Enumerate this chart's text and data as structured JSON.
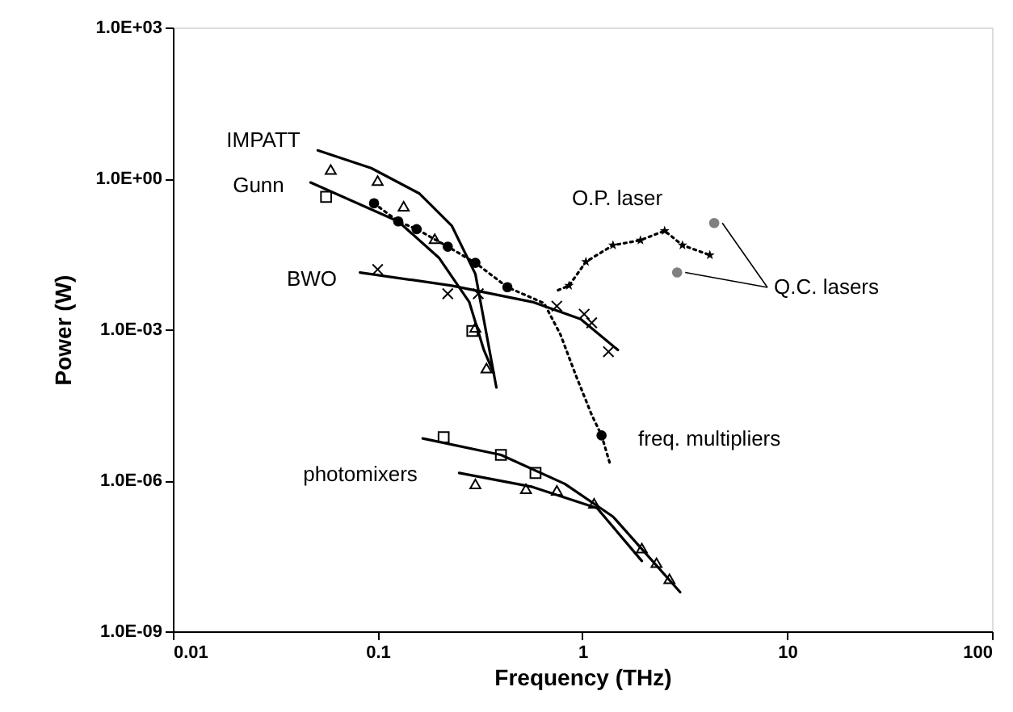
{
  "chart_data": {
    "type": "scatter",
    "xlabel": "Frequency (THz)",
    "ylabel": "Power (W)",
    "log": "xy",
    "grid": false,
    "xlim": [
      0.01,
      100
    ],
    "xticks": [
      0.01,
      0.1,
      1,
      10,
      100
    ],
    "ylim": [
      1e-09,
      1000
    ],
    "yticks": [
      {
        "value": 1000,
        "label": "1.0E+03"
      },
      {
        "value": 1,
        "label": "1.0E+00"
      },
      {
        "value": 0.001,
        "label": "1.0E-03"
      },
      {
        "value": 1e-06,
        "label": "1.0E-06"
      },
      {
        "value": 1e-09,
        "label": "1.0E-09"
      }
    ],
    "series": [
      {
        "type": "line",
        "color": "#000000",
        "line_style": "solid",
        "x": [
          0.051,
          0.093,
          0.16,
          0.23,
          0.3,
          0.38
        ],
        "values": [
          3.6,
          1.6,
          0.5,
          0.115,
          0.0126,
          7e-05
        ]
      },
      {
        "marker": "triangle",
        "color": "#000000",
        "x": [
          0.059,
          0.1,
          0.134,
          0.19,
          0.3,
          0.34
        ],
        "values": [
          1.5,
          0.9,
          0.28,
          0.063,
          0.0011,
          0.00017
        ]
      },
      {
        "type": "line",
        "color": "#000000",
        "line_style": "solid",
        "x": [
          0.047,
          0.126,
          0.2,
          0.28,
          0.33,
          0.37
        ],
        "values": [
          0.83,
          0.14,
          0.026,
          0.0035,
          0.00039,
          0.00013
        ]
      },
      {
        "marker": "square",
        "color": "#000000",
        "x": [
          0.056,
          0.29
        ],
        "values": [
          0.43,
          0.00093
        ]
      },
      {
        "type": "line",
        "color": "#000000",
        "line_style": "dotted",
        "x": [
          0.096,
          0.126,
          0.155,
          0.22,
          0.3,
          0.43,
          0.65,
          0.78,
          0.93,
          1.11,
          1.24,
          1.36
        ],
        "values": [
          0.32,
          0.14,
          0.098,
          0.044,
          0.021,
          0.0069,
          0.0033,
          0.0008,
          0.00012,
          2e-05,
          7.8e-06,
          2.2e-06
        ]
      },
      {
        "marker": "circle",
        "color": "#000000",
        "x": [
          0.096,
          0.126,
          0.155,
          0.22,
          0.3,
          0.43,
          1.24
        ],
        "values": [
          0.32,
          0.14,
          0.098,
          0.044,
          0.021,
          0.0069,
          7.8e-06
        ]
      },
      {
        "type": "line",
        "color": "#000000",
        "line_style": "solid",
        "x": [
          0.082,
          0.23,
          0.57,
          0.98,
          1.49
        ],
        "values": [
          0.0135,
          0.0074,
          0.0035,
          0.0016,
          0.00039
        ]
      },
      {
        "marker": "cross",
        "color": "#000000",
        "x": [
          0.1,
          0.22,
          0.31,
          0.75,
          1.02,
          1.11,
          1.34
        ],
        "values": [
          0.0155,
          0.0051,
          0.0051,
          0.0029,
          0.002,
          0.00135,
          0.00036
        ]
      },
      {
        "type": "line",
        "color": "#000000",
        "line_style": "dotted",
        "x": [
          0.76,
          0.86,
          1.04,
          1.41,
          1.92,
          2.52,
          3.08,
          4.19
        ],
        "values": [
          0.006,
          0.0074,
          0.022,
          0.047,
          0.059,
          0.091,
          0.047,
          0.03
        ]
      },
      {
        "marker": "star",
        "color": "#000000",
        "x": [
          0.86,
          1.04,
          1.41,
          1.92,
          2.52,
          3.08,
          4.19
        ],
        "values": [
          0.0074,
          0.022,
          0.047,
          0.059,
          0.091,
          0.047,
          0.03
        ]
      },
      {
        "marker": "circle",
        "color": "#808080",
        "x": [
          4.4,
          2.9
        ],
        "values": [
          0.13,
          0.0135
        ]
      },
      {
        "type": "line",
        "color": "#000000",
        "line_style": "solid",
        "x": [
          0.166,
          0.4,
          0.82,
          1.41,
          3.0
        ],
        "values": [
          6.8e-06,
          3.2e-06,
          8.5e-07,
          1.9e-07,
          6e-09
        ]
      },
      {
        "marker": "square",
        "color": "#000000",
        "x": [
          0.21,
          0.4,
          0.59
        ],
        "values": [
          7.2e-06,
          3.2e-06,
          1.4e-06
        ]
      },
      {
        "type": "line",
        "color": "#000000",
        "line_style": "solid",
        "x": [
          0.25,
          0.57,
          1.18,
          1.95
        ],
        "values": [
          1.4e-06,
          7.4e-07,
          2.8e-07,
          2.5e-08
        ]
      },
      {
        "marker": "triangle",
        "color": "#000000",
        "x": [
          0.3,
          0.53,
          0.75,
          1.14,
          1.95,
          2.3,
          2.66
        ],
        "values": [
          8.5e-07,
          6.8e-07,
          6.3e-07,
          3.5e-07,
          4.5e-08,
          2.3e-08,
          1.1e-08
        ]
      }
    ],
    "annotations": [
      "IMPATT",
      "Gunn",
      "BWO",
      "O.P. laser",
      {
        "text": "Q.C. lasers",
        "x": 2.9,
        "y": 0.0135
      },
      "freq. multipliers",
      "photomixers"
    ]
  }
}
